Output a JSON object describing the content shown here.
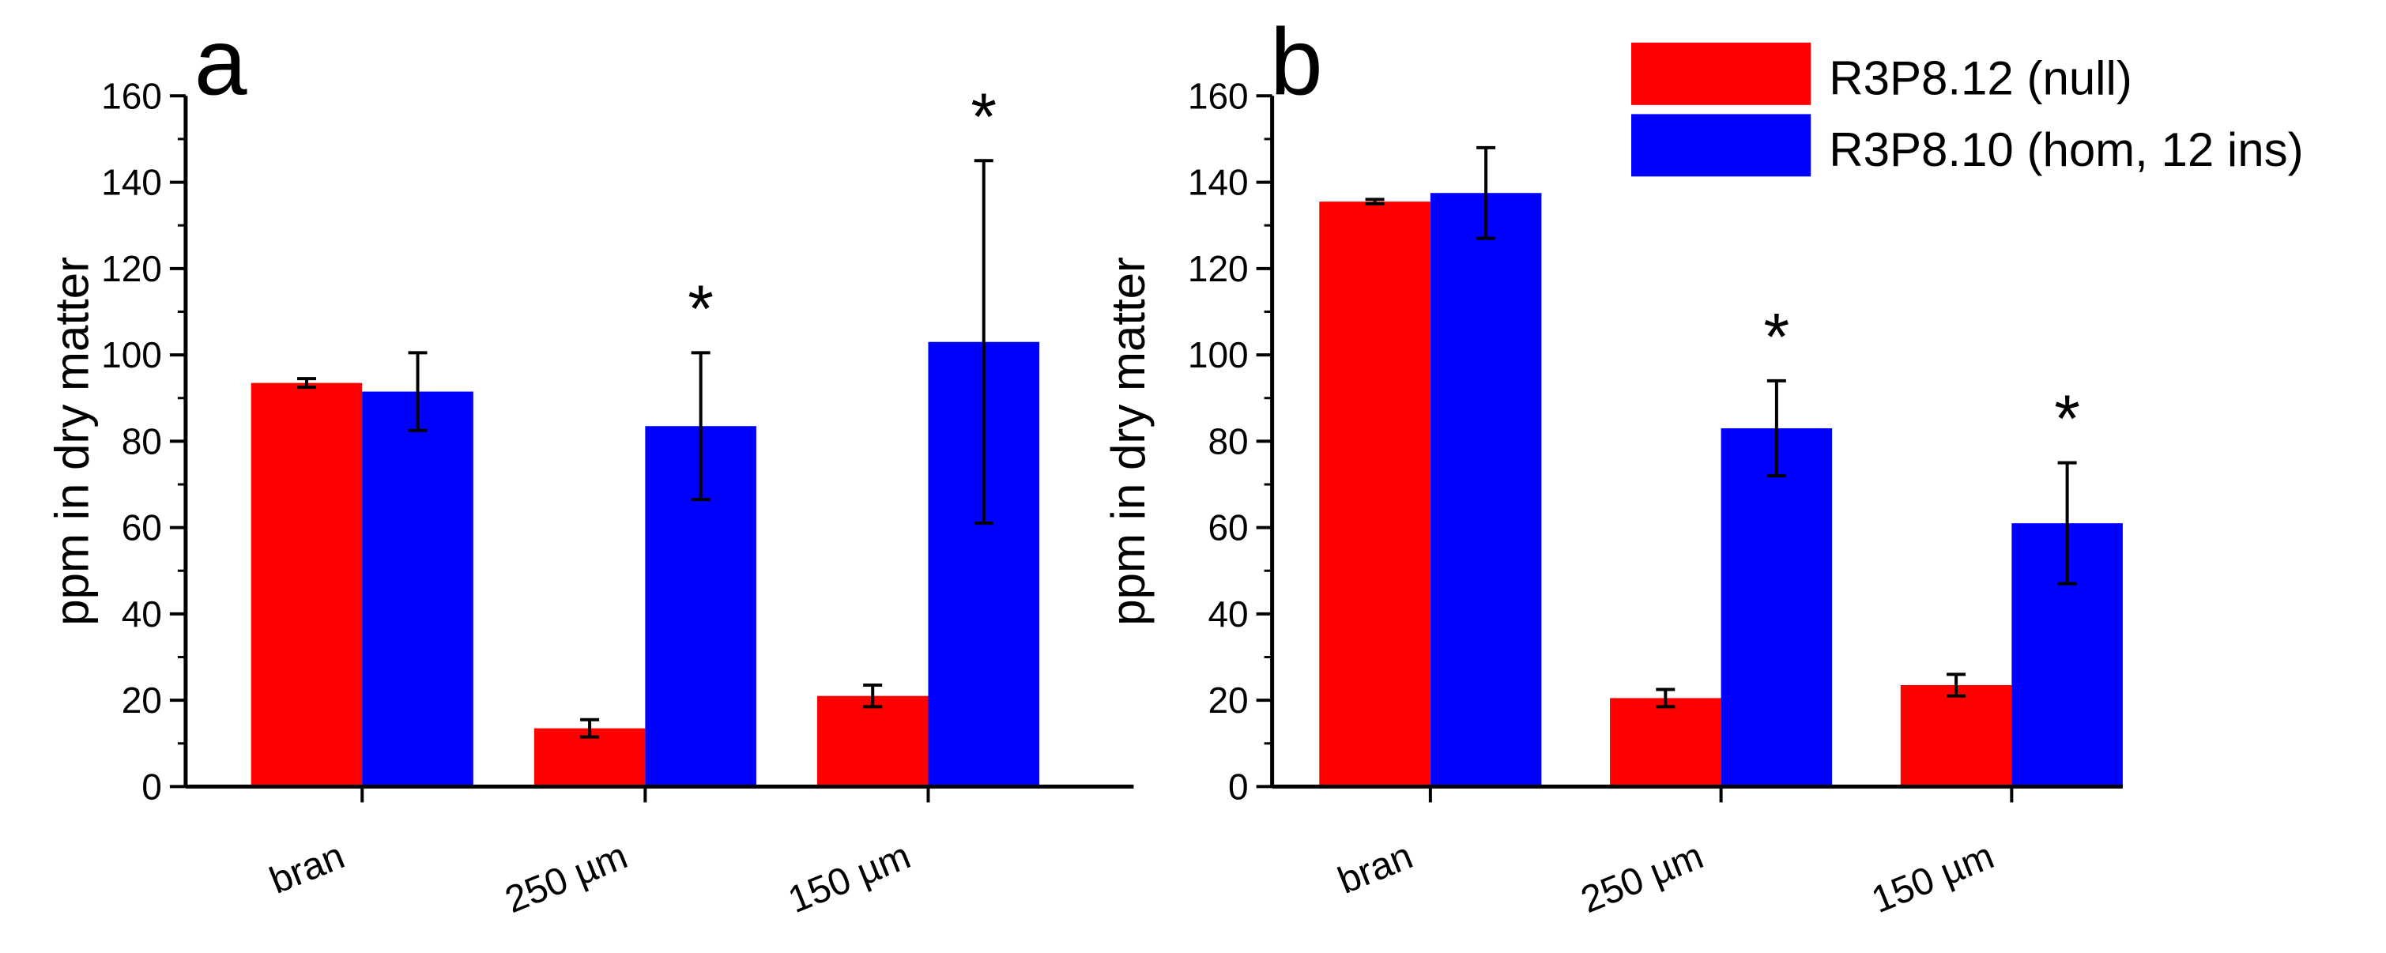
{
  "colors": {
    "null": "#ff0000",
    "hom": "#0000ff",
    "axis": "#000000"
  },
  "legend": [
    {
      "key": "null",
      "label": "R3P8.12 (null)"
    },
    {
      "key": "hom",
      "label": "R3P8.10 (hom, 12 ins)"
    }
  ],
  "chart_data": [
    {
      "type": "bar",
      "panel_label": "a",
      "ylabel": "ppm in dry matter",
      "ylim": [
        0,
        160
      ],
      "yticks": [
        "0",
        "20",
        "40",
        "60",
        "80",
        "100",
        "120",
        "140",
        "160"
      ],
      "categories": [
        "bran",
        "250 µm",
        "150 µm"
      ],
      "series": [
        {
          "name": "R3P8.12 (null)",
          "key": "null",
          "values": [
            93.5,
            13.5,
            21.0
          ],
          "errors": [
            1.0,
            2.0,
            2.5
          ]
        },
        {
          "name": "R3P8.10 (hom, 12 ins)",
          "key": "hom",
          "values": [
            91.5,
            83.5,
            103.0
          ],
          "errors": [
            9.0,
            17.0,
            42.0
          ]
        }
      ],
      "significance": [
        {
          "category": 1,
          "series": 1,
          "symbol": "*"
        },
        {
          "category": 2,
          "series": 1,
          "symbol": "*"
        }
      ]
    },
    {
      "type": "bar",
      "panel_label": "b",
      "ylabel": "ppm in dry matter",
      "ylim": [
        0,
        160
      ],
      "yticks": [
        "0",
        "20",
        "40",
        "60",
        "80",
        "100",
        "120",
        "140",
        "160"
      ],
      "categories": [
        "bran",
        "250 µm",
        "150 µm"
      ],
      "series": [
        {
          "name": "R3P8.12 (null)",
          "key": "null",
          "values": [
            135.5,
            20.5,
            23.5
          ],
          "errors": [
            0.5,
            2.0,
            2.5
          ]
        },
        {
          "name": "R3P8.10 (hom, 12 ins)",
          "key": "hom",
          "values": [
            137.5,
            83.0,
            61.0
          ],
          "errors": [
            10.5,
            11.0,
            14.0
          ]
        }
      ],
      "significance": [
        {
          "category": 1,
          "series": 1,
          "symbol": "*"
        },
        {
          "category": 2,
          "series": 1,
          "symbol": "*"
        }
      ]
    }
  ]
}
